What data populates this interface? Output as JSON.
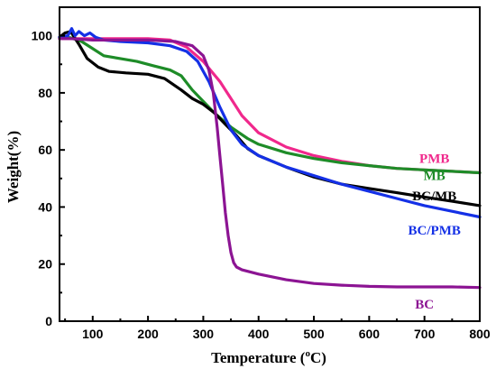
{
  "chart_data": {
    "type": "line",
    "title": "",
    "xlabel": "Temperature",
    "xlabel_unit_open": " (",
    "xlabel_unit_sup": "o",
    "xlabel_unit_rest": "C)",
    "ylabel": "Weight(%)",
    "xlim": [
      40,
      800
    ],
    "ylim": [
      0,
      110
    ],
    "xticks": [
      100,
      200,
      300,
      400,
      500,
      600,
      700,
      800
    ],
    "yticks": [
      0,
      20,
      40,
      60,
      80,
      100
    ],
    "grid": false,
    "legend": "inline-labels",
    "series": [
      {
        "name": "PMB",
        "color": "#f0288c",
        "label_anchor": [
          718,
          57
        ],
        "x": [
          40,
          60,
          100,
          150,
          200,
          240,
          270,
          300,
          330,
          350,
          370,
          400,
          450,
          500,
          550,
          600,
          650,
          700,
          750,
          800
        ],
        "y": [
          99,
          99,
          99,
          99,
          99,
          98.5,
          96,
          91,
          84,
          78,
          72,
          66,
          61,
          58,
          56,
          54.5,
          53.5,
          53,
          52.5,
          52
        ]
      },
      {
        "name": "MB",
        "color": "#1e8c28",
        "label_anchor": [
          718,
          51
        ],
        "x": [
          40,
          60,
          80,
          100,
          120,
          150,
          180,
          210,
          240,
          260,
          280,
          300,
          320,
          350,
          380,
          400,
          450,
          500,
          550,
          600,
          650,
          700,
          750,
          800
        ],
        "y": [
          99.5,
          99.3,
          98,
          95.5,
          93,
          92,
          91,
          89.5,
          88,
          86,
          81,
          77,
          73,
          68,
          64,
          62,
          59,
          57,
          55.5,
          54.5,
          53.5,
          53,
          52.5,
          52
        ]
      },
      {
        "name": "BC/MB",
        "color": "#000000",
        "label_anchor": [
          718,
          44
        ],
        "x": [
          40,
          50,
          60,
          75,
          90,
          110,
          130,
          160,
          200,
          230,
          260,
          280,
          300,
          320,
          340,
          360,
          380,
          400,
          450,
          500,
          550,
          600,
          650,
          700,
          750,
          800
        ],
        "y": [
          99.5,
          101,
          101.5,
          97,
          92,
          89,
          87.5,
          87,
          86.5,
          85,
          81,
          78,
          76,
          73,
          69,
          65,
          60.5,
          58,
          54,
          50.5,
          48,
          46.5,
          45,
          43.5,
          42,
          40.5
        ]
      },
      {
        "name": "BC/PMB",
        "color": "#1430e6",
        "label_anchor": [
          718,
          32
        ],
        "x": [
          40,
          55,
          62,
          68,
          75,
          85,
          95,
          105,
          120,
          150,
          200,
          240,
          270,
          290,
          310,
          330,
          350,
          370,
          400,
          450,
          500,
          550,
          600,
          650,
          700,
          750,
          800
        ],
        "y": [
          99.5,
          100,
          102.5,
          100,
          101.5,
          100,
          101,
          99.5,
          98.5,
          98,
          97.5,
          96.5,
          94.5,
          91,
          84,
          75,
          67,
          62,
          58,
          54,
          51,
          48,
          45.5,
          43,
          40.5,
          38.5,
          36.5
        ]
      },
      {
        "name": "BC",
        "color": "#8c1493",
        "label_anchor": [
          700,
          6
        ],
        "x": [
          40,
          60,
          100,
          150,
          200,
          250,
          280,
          300,
          310,
          318,
          325,
          330,
          335,
          340,
          345,
          350,
          355,
          360,
          370,
          400,
          450,
          500,
          550,
          600,
          650,
          700,
          750,
          800
        ],
        "y": [
          99,
          99,
          98.5,
          98.5,
          98.5,
          98,
          96.5,
          93,
          88,
          80,
          68,
          58,
          48,
          38,
          30,
          24,
          20.5,
          19,
          18,
          16.5,
          14.5,
          13.2,
          12.6,
          12.2,
          12,
          12,
          12,
          11.8
        ]
      }
    ]
  }
}
